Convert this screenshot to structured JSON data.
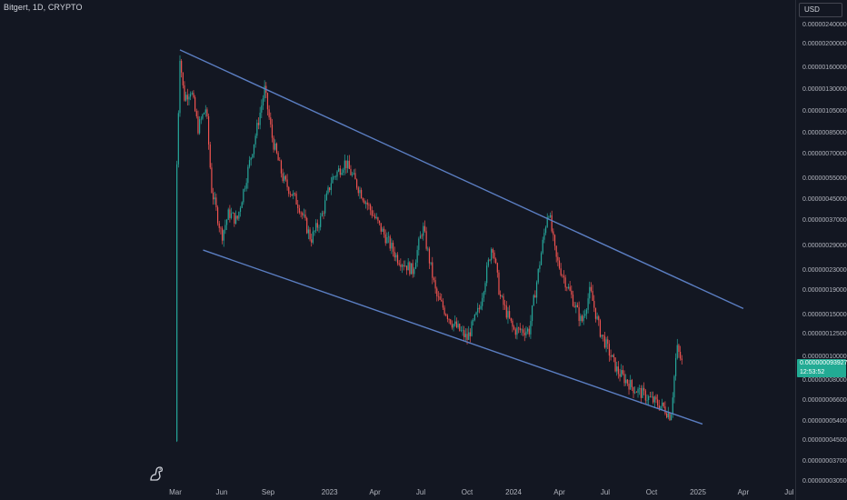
{
  "header": {
    "symbol_line": "Bitgert, 1D, CRYPTO",
    "currency": "USD"
  },
  "current_price": {
    "value": "0.000000093927",
    "countdown": "12:53:52",
    "color": "#22ab94"
  },
  "colors": {
    "background": "#131722",
    "up": "#26a69a",
    "down": "#ef5350",
    "trendline": "#5b7ec2",
    "axis_text": "#b2b5be"
  },
  "logo_icon": "tradingview-dino-icon",
  "chart_data": {
    "type": "candlestick",
    "title": "Bitgert, 1D, CRYPTO",
    "y_scale": "log",
    "price_ticks": [
      "0.000002400000",
      "0.000002000000",
      "0.000001600000",
      "0.000001300000",
      "0.000001050000",
      "0.000000850000",
      "0.000000700000",
      "0.000000550000",
      "0.000000450000",
      "0.000000370000",
      "0.000000290000",
      "0.000000230000",
      "0.000000190000",
      "0.000000150000",
      "0.000000125000",
      "0.000000100000",
      "0.000000080000",
      "0.000000066000",
      "0.000000054000",
      "0.000000045000",
      "0.000000037000",
      "0.000000030500"
    ],
    "time_ticks": [
      "Mar",
      "Jun",
      "Sep",
      "2023",
      "Apr",
      "Jul",
      "Oct",
      "2024",
      "Apr",
      "Jul",
      "Oct",
      "2025",
      "Apr",
      "Jul"
    ],
    "price_anchors": [
      {
        "date": "2022-03-01",
        "price": 4.5e-08
      },
      {
        "date": "2022-03-02",
        "price": 4.5e-07
      },
      {
        "date": "2022-03-06",
        "price": 9e-07
      },
      {
        "date": "2022-03-10",
        "price": 1.8e-06
      },
      {
        "date": "2022-03-18",
        "price": 1.2e-06
      },
      {
        "date": "2022-04-01",
        "price": 1.3e-06
      },
      {
        "date": "2022-04-15",
        "price": 9e-07
      },
      {
        "date": "2022-05-01",
        "price": 1.1e-06
      },
      {
        "date": "2022-05-12",
        "price": 5e-07
      },
      {
        "date": "2022-06-01",
        "price": 3.2e-07
      },
      {
        "date": "2022-06-15",
        "price": 4e-07
      },
      {
        "date": "2022-07-01",
        "price": 3.7e-07
      },
      {
        "date": "2022-08-10",
        "price": 9e-07
      },
      {
        "date": "2022-08-25",
        "price": 1.3e-06
      },
      {
        "date": "2022-09-10",
        "price": 8e-07
      },
      {
        "date": "2022-10-01",
        "price": 5.5e-07
      },
      {
        "date": "2022-11-01",
        "price": 4.3e-07
      },
      {
        "date": "2022-11-25",
        "price": 3.1e-07
      },
      {
        "date": "2022-12-15",
        "price": 3.8e-07
      },
      {
        "date": "2023-01-05",
        "price": 5.5e-07
      },
      {
        "date": "2023-02-01",
        "price": 6.5e-07
      },
      {
        "date": "2023-03-01",
        "price": 5e-07
      },
      {
        "date": "2023-04-01",
        "price": 3.8e-07
      },
      {
        "date": "2023-05-15",
        "price": 2.6e-07
      },
      {
        "date": "2023-06-15",
        "price": 2.3e-07
      },
      {
        "date": "2023-07-05",
        "price": 3.5e-07
      },
      {
        "date": "2023-08-01",
        "price": 1.8e-07
      },
      {
        "date": "2023-09-01",
        "price": 1.4e-07
      },
      {
        "date": "2023-10-01",
        "price": 1.2e-07
      },
      {
        "date": "2023-10-25",
        "price": 1.6e-07
      },
      {
        "date": "2023-11-20",
        "price": 3e-07
      },
      {
        "date": "2023-12-05",
        "price": 1.8e-07
      },
      {
        "date": "2024-01-01",
        "price": 1.3e-07
      },
      {
        "date": "2024-02-01",
        "price": 1.3e-07
      },
      {
        "date": "2024-03-10",
        "price": 4.2e-07
      },
      {
        "date": "2024-03-25",
        "price": 2.6e-07
      },
      {
        "date": "2024-04-25",
        "price": 1.8e-07
      },
      {
        "date": "2024-05-15",
        "price": 1.4e-07
      },
      {
        "date": "2024-06-01",
        "price": 1.9e-07
      },
      {
        "date": "2024-06-20",
        "price": 1.3e-07
      },
      {
        "date": "2024-07-25",
        "price": 8.8e-08
      },
      {
        "date": "2024-08-25",
        "price": 7.5e-08
      },
      {
        "date": "2024-09-25",
        "price": 6.8e-08
      },
      {
        "date": "2024-10-25",
        "price": 6.2e-08
      },
      {
        "date": "2024-11-08",
        "price": 5.7e-08
      },
      {
        "date": "2024-11-20",
        "price": 1.1e-07
      },
      {
        "date": "2024-12-01",
        "price": 9.4e-08
      }
    ],
    "trendlines": [
      {
        "name": "upper",
        "start": {
          "date": "2022-03-10",
          "price": 1.9e-06
        },
        "end": {
          "date": "2025-04-01",
          "price": 1.6e-07
        }
      },
      {
        "name": "lower",
        "start": {
          "date": "2022-04-25",
          "price": 2.8e-07
        },
        "end": {
          "date": "2025-01-10",
          "price": 5.3e-08
        }
      }
    ],
    "grid": false,
    "legend": "none"
  }
}
